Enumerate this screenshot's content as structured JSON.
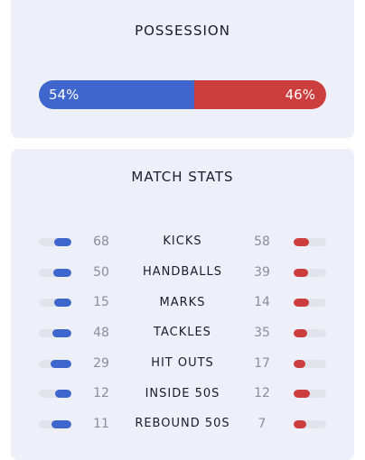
{
  "colors": {
    "home": "#3f66cc",
    "away": "#cc3d3d",
    "card_bg": "#edf0f8",
    "track": "#e1e4ea"
  },
  "possession": {
    "title": "POSSESSION",
    "home_pct": 54,
    "away_pct": 46,
    "home_label": "54%",
    "away_label": "46%"
  },
  "match_stats": {
    "title": "MATCH STATS",
    "rows": [
      {
        "label": "KICKS",
        "home": "68",
        "away": "58",
        "home_fill": 0.54,
        "away_fill": 0.46
      },
      {
        "label": "HANDBALLS",
        "home": "50",
        "away": "39",
        "home_fill": 0.56,
        "away_fill": 0.44
      },
      {
        "label": "MARKS",
        "home": "15",
        "away": "14",
        "home_fill": 0.52,
        "away_fill": 0.48
      },
      {
        "label": "TACKLES",
        "home": "48",
        "away": "35",
        "home_fill": 0.58,
        "away_fill": 0.42
      },
      {
        "label": "HIT OUTS",
        "home": "29",
        "away": "17",
        "home_fill": 0.63,
        "away_fill": 0.37
      },
      {
        "label": "INSIDE 50S",
        "home": "12",
        "away": "12",
        "home_fill": 0.5,
        "away_fill": 0.5
      },
      {
        "label": "REBOUND 50S",
        "home": "11",
        "away": "7",
        "home_fill": 0.61,
        "away_fill": 0.39
      }
    ]
  }
}
